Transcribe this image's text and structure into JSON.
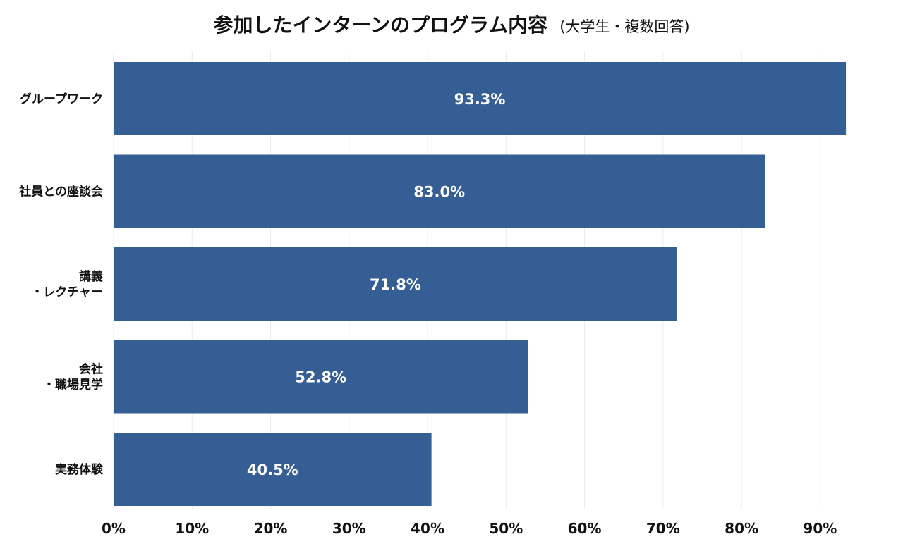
{
  "chart_data": {
    "type": "bar",
    "orientation": "horizontal",
    "title": "参加したインターンのプログラム内容",
    "subtitle": "(大学生・複数回答)",
    "categories": [
      [
        "グループワーク"
      ],
      [
        "社員との座談会"
      ],
      [
        "講義",
        "・レクチャー"
      ],
      [
        "会社",
        "・職場見学"
      ],
      [
        "実務体験"
      ]
    ],
    "values": [
      93.3,
      83.0,
      71.8,
      52.8,
      40.5
    ],
    "value_labels": [
      "93.3%",
      "83.0%",
      "71.8%",
      "52.8%",
      "40.5%"
    ],
    "xlim": [
      0,
      95
    ],
    "xticks": [
      0,
      10,
      20,
      30,
      40,
      50,
      60,
      70,
      80,
      90
    ],
    "xtick_labels": [
      "0%",
      "10%",
      "20%",
      "30%",
      "40%",
      "50%",
      "60%",
      "70%",
      "80%",
      "90%"
    ],
    "xlabel": "",
    "ylabel": "",
    "grid": "vertical",
    "legend": "none",
    "colors": {
      "bar": "#355e95",
      "value_text": "#ffffff",
      "grid": "#ebebeb",
      "text": "#111111"
    }
  }
}
